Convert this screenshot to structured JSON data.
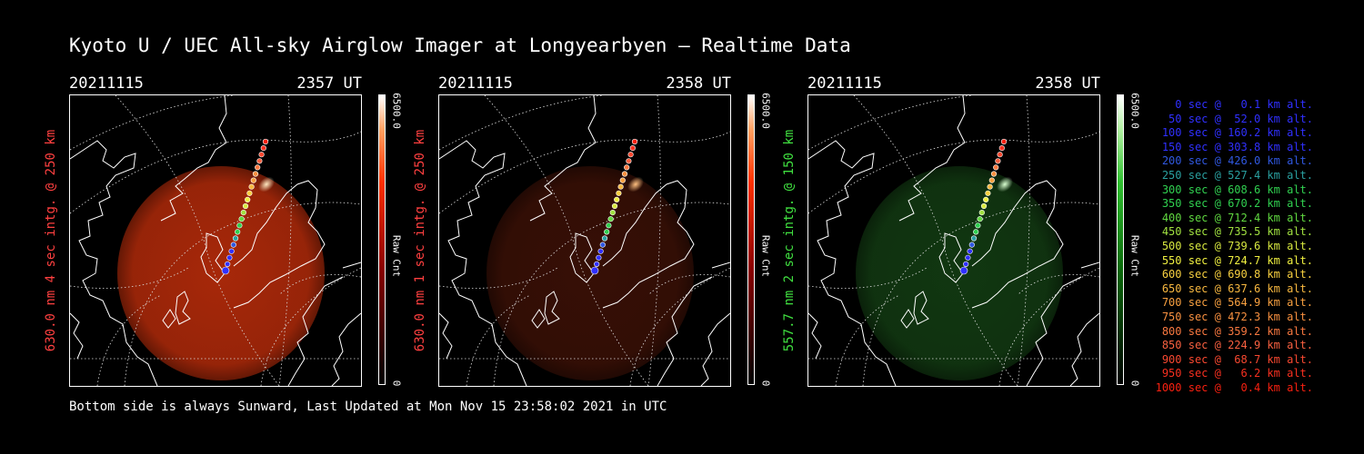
{
  "title": "Kyoto U / UEC All-sky Airglow Imager at Longyearbyen — Realtime Data",
  "footer": "Bottom side is always Sunward, Last Updated at Mon Nov 15 23:58:02 2021 in UTC",
  "colors": {
    "red_label": "#ff4040",
    "green_label": "#40e040"
  },
  "panels": [
    {
      "date": "20211115",
      "time": "2357 UT",
      "ylabel": "630.0 nm 4 sec intg. @ 250 km",
      "cbar_max": "6500.0",
      "cbar_label": "Raw Cnt",
      "cbar_min": "0",
      "label_color": "#ff4040",
      "glow_color": "#b02a0a",
      "glow_opacity": "0.95"
    },
    {
      "date": "20211115",
      "time": "2358 UT",
      "ylabel": "630.0 nm 1 sec intg. @ 250 km",
      "cbar_max": "6500.0",
      "cbar_label": "Raw Cnt",
      "cbar_min": "0",
      "label_color": "#ff4040",
      "glow_color": "#3a1006",
      "glow_opacity": "0.95"
    },
    {
      "date": "20211115",
      "time": "2358 UT",
      "ylabel": "557.7 nm 2 sec intg. @ 150 km",
      "cbar_max": "6500.0",
      "cbar_label": "Raw Cnt",
      "cbar_min": "0",
      "label_color": "#40e040",
      "glow_color": "#123a12",
      "glow_opacity": "0.95"
    }
  ],
  "legend": [
    {
      "text": "0 sec @   0.1 km alt.",
      "color": "#3030ff"
    },
    {
      "text": "50 sec @  52.0 km alt.",
      "color": "#3030ff"
    },
    {
      "text": "100 sec @ 160.2 km alt.",
      "color": "#3030ff"
    },
    {
      "text": "150 sec @ 303.8 km alt.",
      "color": "#3030ff"
    },
    {
      "text": "200 sec @ 426.0 km alt.",
      "color": "#3058e0"
    },
    {
      "text": "250 sec @ 527.4 km alt.",
      "color": "#2aa0a0"
    },
    {
      "text": "300 sec @ 608.6 km alt.",
      "color": "#30d050"
    },
    {
      "text": "350 sec @ 670.2 km alt.",
      "color": "#30d050"
    },
    {
      "text": "400 sec @ 712.4 km alt.",
      "color": "#60d840"
    },
    {
      "text": "450 sec @ 735.5 km alt.",
      "color": "#a0e040"
    },
    {
      "text": "500 sec @ 739.6 km alt.",
      "color": "#d8e840"
    },
    {
      "text": "550 sec @ 724.7 km alt.",
      "color": "#f0f040"
    },
    {
      "text": "600 sec @ 690.8 km alt.",
      "color": "#f8d040"
    },
    {
      "text": "650 sec @ 637.6 km alt.",
      "color": "#f8b840"
    },
    {
      "text": "700 sec @ 564.9 km alt.",
      "color": "#f8a040"
    },
    {
      "text": "750 sec @ 472.3 km alt.",
      "color": "#f89040"
    },
    {
      "text": "800 sec @ 359.2 km alt.",
      "color": "#f87840"
    },
    {
      "text": "850 sec @ 224.9 km alt.",
      "color": "#f86040"
    },
    {
      "text": "900 sec @  68.7 km alt.",
      "color": "#f84830"
    },
    {
      "text": "950 sec @   6.2 km alt.",
      "color": "#f83020"
    },
    {
      "text": "1000 sec @   0.4 km alt.",
      "color": "#f82010"
    }
  ]
}
